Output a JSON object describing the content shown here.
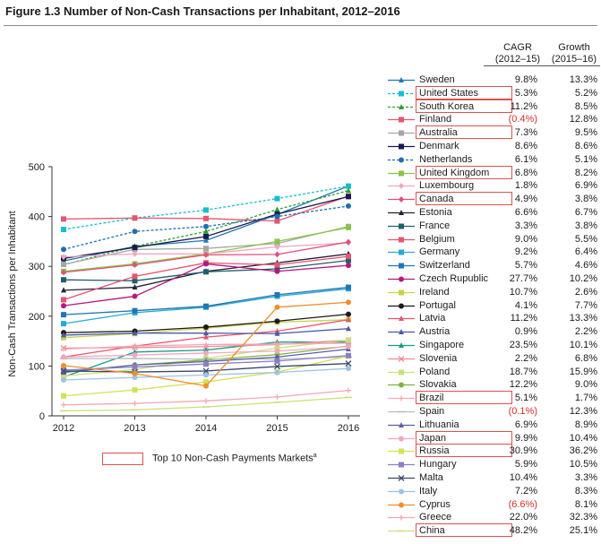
{
  "figure_title": "Figure 1.3 Number of Non-Cash Transactions per Inhabitant, 2012–2016",
  "table_headers": {
    "cagr_line1": "CAGR",
    "cagr_line2": "(2012–15)",
    "growth_line1": "Growth",
    "growth_line2": "(2015–16)"
  },
  "footnote_legend": {
    "label": "Top 10 Non-Cash Payments Markets",
    "superscript": "a",
    "box_color": "#d9534f"
  },
  "colors": {
    "highlight": "#d9534f",
    "negative_value": "#d2302c"
  },
  "chart_data": {
    "type": "line",
    "title": "Figure 1.3 Number of Non-Cash Transactions per Inhabitant, 2012–2016",
    "xlabel": "",
    "ylabel": "Non-Cash Transactions per Inhabitant",
    "x": [
      "2012",
      "2013",
      "2014",
      "2015",
      "2016"
    ],
    "ylim": [
      0,
      500
    ],
    "yticks": [
      0,
      100,
      200,
      300,
      400,
      500
    ],
    "grid": false,
    "legend_position": "right",
    "series": [
      {
        "name": "Sweden",
        "values": [
          311,
          340,
          352,
          404,
          461
        ],
        "cagr": "9.8%",
        "growth": "13.3%",
        "color": "#1f77b4",
        "dash": false,
        "marker": "triangle",
        "top10": false
      },
      {
        "name": "United States",
        "values": [
          374,
          397,
          413,
          436,
          461
        ],
        "cagr": "5.3%",
        "growth": "5.2%",
        "color": "#17becf",
        "dash": true,
        "marker": "square",
        "top10": true
      },
      {
        "name": "South Korea",
        "values": [
          303,
          340,
          370,
          414,
          452
        ],
        "cagr": "11.2%",
        "growth": "8.5%",
        "color": "#2ca02c",
        "dash": true,
        "marker": "triangle",
        "top10": true
      },
      {
        "name": "Finland",
        "values": [
          395,
          397,
          396,
          391,
          441
        ],
        "cagr": "(0.4%)",
        "growth": "12.8%",
        "color": "#e6556f",
        "dash": false,
        "marker": "square",
        "top10": false
      },
      {
        "name": "Australia",
        "values": [
          304,
          334,
          336,
          346,
          380
        ],
        "cagr": "7.3%",
        "growth": "9.5%",
        "color": "#a6a6a6",
        "dash": false,
        "marker": "square",
        "top10": true
      },
      {
        "name": "Denmark",
        "values": [
          316,
          338,
          360,
          405,
          440
        ],
        "cagr": "8.6%",
        "growth": "8.6%",
        "color": "#1a1a4e",
        "dash": false,
        "marker": "square",
        "top10": false
      },
      {
        "name": "Netherlands",
        "values": [
          334,
          370,
          380,
          400,
          421
        ],
        "cagr": "6.1%",
        "growth": "5.1%",
        "color": "#1f6fb4",
        "dash": true,
        "marker": "circle",
        "top10": false
      },
      {
        "name": "United Kingdom",
        "values": [
          290,
          305,
          325,
          350,
          378
        ],
        "cagr": "6.8%",
        "growth": "8.2%",
        "color": "#8bc34a",
        "dash": false,
        "marker": "square",
        "top10": true
      },
      {
        "name": "Luxembourg",
        "values": [
          319,
          325,
          325,
          339,
          347
        ],
        "cagr": "1.8%",
        "growth": "6.9%",
        "color": "#f4a6c0",
        "dash": false,
        "marker": "diamond",
        "top10": false
      },
      {
        "name": "Canada",
        "values": [
          288,
          303,
          323,
          324,
          349
        ],
        "cagr": "4.9%",
        "growth": "3.8%",
        "color": "#e0507a",
        "dash": false,
        "marker": "diamond",
        "top10": true
      },
      {
        "name": "Estonia",
        "values": [
          252,
          258,
          290,
          307,
          325
        ],
        "cagr": "6.6%",
        "growth": "6.7%",
        "color": "#222233",
        "dash": false,
        "marker": "triangle",
        "top10": false
      },
      {
        "name": "France",
        "values": [
          273,
          271,
          289,
          295,
          312
        ],
        "cagr": "3.3%",
        "growth": "3.8%",
        "color": "#1f5f6f",
        "dash": false,
        "marker": "square",
        "top10": false
      },
      {
        "name": "Belgium",
        "values": [
          233,
          280,
          307,
          303,
          320
        ],
        "cagr": "9.0%",
        "growth": "5.5%",
        "color": "#e6556f",
        "dash": false,
        "marker": "square",
        "top10": false
      },
      {
        "name": "Germany",
        "values": [
          185,
          207,
          218,
          240,
          255
        ],
        "cagr": "9.2%",
        "growth": "6.4%",
        "color": "#26a9d6",
        "dash": false,
        "marker": "square",
        "top10": false
      },
      {
        "name": "Switzerland",
        "values": [
          203,
          211,
          220,
          243,
          258
        ],
        "cagr": "5.7%",
        "growth": "4.6%",
        "color": "#1f77b4",
        "dash": false,
        "marker": "square",
        "top10": false
      },
      {
        "name": "Czech Rupublic",
        "values": [
          221,
          240,
          305,
          290,
          302
        ],
        "cagr": "27.7%",
        "growth": "10.2%",
        "color": "#b5187e",
        "dash": false,
        "marker": "circle",
        "top10": false
      },
      {
        "name": "Ireland",
        "values": [
          157,
          165,
          176,
          188,
          193
        ],
        "cagr": "10.7%",
        "growth": "2.6%",
        "color": "#c7d24a",
        "dash": false,
        "marker": "square",
        "top10": false
      },
      {
        "name": "Portugal",
        "values": [
          167,
          170,
          178,
          190,
          204
        ],
        "cagr": "4.1%",
        "growth": "7.7%",
        "color": "#1a1a1a",
        "dash": false,
        "marker": "circle",
        "top10": false
      },
      {
        "name": "Latvia",
        "values": [
          118,
          140,
          158,
          170,
          193
        ],
        "cagr": "11.2%",
        "growth": "13.3%",
        "color": "#e6556f",
        "dash": false,
        "marker": "triangle",
        "top10": false
      },
      {
        "name": "Austria",
        "values": [
          162,
          166,
          166,
          165,
          175
        ],
        "cagr": "0.9%",
        "growth": "2.2%",
        "color": "#4a5aa8",
        "dash": false,
        "marker": "triangle",
        "top10": false
      },
      {
        "name": "Singapore",
        "values": [
          78,
          128,
          132,
          148,
          148
        ],
        "cagr": "23.5%",
        "growth": "10.1%",
        "color": "#1a9a8a",
        "dash": false,
        "marker": "triangle",
        "top10": false
      },
      {
        "name": "Slovenia",
        "values": [
          136,
          137,
          139,
          143,
          152
        ],
        "cagr": "2.2%",
        "growth": "6.8%",
        "color": "#f08a9a",
        "dash": false,
        "marker": "x",
        "top10": false
      },
      {
        "name": "Poland",
        "values": [
          80,
          93,
          115,
          136,
          152
        ],
        "cagr": "18.7%",
        "growth": "15.9%",
        "color": "#c9e27a",
        "dash": false,
        "marker": "square",
        "top10": false
      },
      {
        "name": "Slovakia",
        "values": [
          88,
          102,
          112,
          123,
          140
        ],
        "cagr": "12.2%",
        "growth": "9.0%",
        "color": "#7cb342",
        "dash": false,
        "marker": "circle",
        "top10": false
      },
      {
        "name": "Brazil",
        "values": [
          134,
          140,
          143,
          144,
          146
        ],
        "cagr": "5.1%",
        "growth": "1.7%",
        "color": "#f4a6b6",
        "dash": false,
        "marker": "plus",
        "top10": true
      },
      {
        "name": "Spain",
        "values": [
          115,
          115,
          114,
          114,
          118
        ],
        "cagr": "(0.1%)",
        "growth": "12.3%",
        "color": "#bcbcbc",
        "dash": false,
        "marker": "dash",
        "top10": false
      },
      {
        "name": "Lithuania",
        "values": [
          87,
          102,
          109,
          118,
          134
        ],
        "cagr": "6.9%",
        "growth": "8.9%",
        "color": "#5b5ea6",
        "dash": false,
        "marker": "triangle",
        "top10": false
      },
      {
        "name": "Japan",
        "values": [
          118,
          122,
          126,
          130,
          139
        ],
        "cagr": "9.9%",
        "growth": "10.4%",
        "color": "#f4a6c0",
        "dash": false,
        "marker": "circle",
        "top10": true
      },
      {
        "name": "Russia",
        "values": [
          40,
          52,
          68,
          88,
          120
        ],
        "cagr": "30.9%",
        "growth": "36.2%",
        "color": "#d4e157",
        "dash": false,
        "marker": "square",
        "top10": true
      },
      {
        "name": "Hungary",
        "values": [
          92,
          98,
          104,
          110,
          121
        ],
        "cagr": "5.9%",
        "growth": "10.5%",
        "color": "#8a7fc7",
        "dash": false,
        "marker": "square",
        "top10": false
      },
      {
        "name": "Malta",
        "values": [
          90,
          88,
          90,
          99,
          105
        ],
        "cagr": "10.4%",
        "growth": "3.3%",
        "color": "#3b4a6b",
        "dash": false,
        "marker": "x",
        "top10": false
      },
      {
        "name": "Italy",
        "values": [
          72,
          77,
          82,
          87,
          95
        ],
        "cagr": "7.2%",
        "growth": "8.3%",
        "color": "#9dc3e6",
        "dash": false,
        "marker": "circle",
        "top10": false
      },
      {
        "name": "Cyprus",
        "values": [
          101,
          85,
          60,
          218,
          228
        ],
        "cagr": "(6.6%)",
        "growth": "8.1%",
        "color": "#f28e2b",
        "dash": false,
        "marker": "circle",
        "top10": false
      },
      {
        "name": "Greece",
        "values": [
          22,
          25,
          30,
          38,
          51
        ],
        "cagr": "22.0%",
        "growth": "32.3%",
        "color": "#f4a6b6",
        "dash": false,
        "marker": "plus",
        "top10": false
      },
      {
        "name": "China",
        "values": [
          10,
          12,
          18,
          27,
          37
        ],
        "cagr": "48.2%",
        "growth": "25.1%",
        "color": "#c9e27a",
        "dash": false,
        "marker": "dash",
        "top10": true
      }
    ]
  }
}
